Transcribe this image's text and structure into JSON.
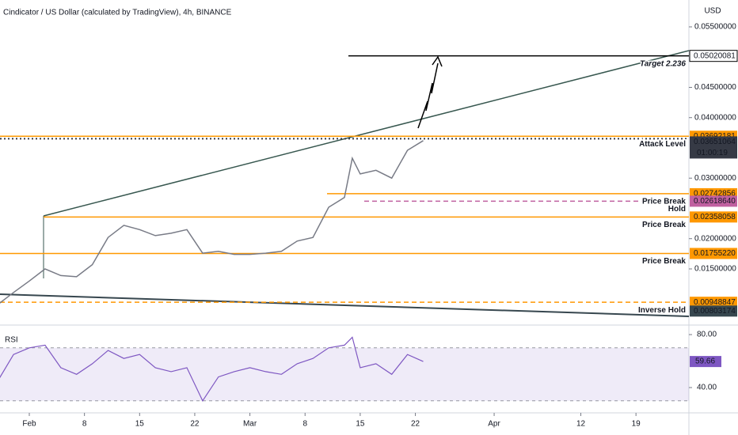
{
  "chart_data": {
    "type": "line",
    "title": "Cindicator / US Dollar (calculated by TradingView), 4h, BINANCE",
    "currency": "USD",
    "x": [
      "01-28",
      "01-30",
      "02-01",
      "02-03",
      "02-05",
      "02-07",
      "02-09",
      "02-11",
      "02-13",
      "02-15",
      "02-17",
      "02-19",
      "02-21",
      "02-23",
      "02-25",
      "02-27",
      "03-01",
      "03-03",
      "03-05",
      "03-07",
      "03-09",
      "03-11",
      "03-13",
      "03-14",
      "03-15",
      "03-17",
      "03-19",
      "03-21",
      "03-23"
    ],
    "series": [
      {
        "color": "#787b86",
        "values": [
          0.0091,
          0.0111,
          0.013,
          0.015,
          0.0139,
          0.0137,
          0.0157,
          0.0202,
          0.0222,
          0.0215,
          0.0205,
          0.0209,
          0.0215,
          0.0176,
          0.0179,
          0.0174,
          0.0174,
          0.0176,
          0.0179,
          0.0196,
          0.0202,
          0.0252,
          0.0268,
          0.0333,
          0.0307,
          0.0313,
          0.03,
          0.0346,
          0.0362
        ]
      }
    ],
    "ylim": [
      0.00585,
      0.05944
    ],
    "yticks": [
      {
        "value": 0.055,
        "label": "0.05500000"
      },
      {
        "value": 0.045,
        "label": "0.04500000"
      },
      {
        "value": 0.04,
        "label": "0.04000000"
      },
      {
        "value": 0.03,
        "label": "0.03000000"
      },
      {
        "value": 0.02,
        "label": "0.02000000"
      },
      {
        "value": 0.015,
        "label": "0.01500000"
      }
    ],
    "xticks": [
      {
        "value": "02-01",
        "label": "Feb"
      },
      {
        "value": "02-08",
        "label": "8"
      },
      {
        "value": "02-15",
        "label": "15"
      },
      {
        "value": "02-22",
        "label": "22"
      },
      {
        "value": "03-01",
        "label": "Mar"
      },
      {
        "value": "03-08",
        "label": "8"
      },
      {
        "value": "03-15",
        "label": "15"
      },
      {
        "value": "03-22",
        "label": "22"
      },
      {
        "value": "04-01",
        "label": "Apr"
      },
      {
        "value": "04-12",
        "label": "12"
      },
      {
        "value": "04-19",
        "label": "19"
      }
    ],
    "levels": [
      {
        "value": 0.05020081,
        "name": "Target 2.236",
        "color": "#000000",
        "style": "solid"
      },
      {
        "value": 0.03692181,
        "name": "Attack Level",
        "color": "#ff9800",
        "style": "solid"
      },
      {
        "value": 0.03651064,
        "color": "#363a45",
        "style": "dotted",
        "timer": "01:00:19"
      },
      {
        "value": 0.02742856,
        "name": "Price Break",
        "color": "#ff9800",
        "style": "solid"
      },
      {
        "value": 0.0261864,
        "label": "0.02618640",
        "name": "Hold",
        "color": "#c060a0",
        "style": "dashed"
      },
      {
        "value": 0.02358058,
        "name": "Price Break",
        "color": "#ff9800",
        "style": "solid"
      },
      {
        "value": 0.0175522,
        "label": "0.01755220",
        "name": "Price Break",
        "color": "#ff9800",
        "style": "solid"
      },
      {
        "value": 0.00948847,
        "name": "Inverse Hold",
        "color": "#ff9800",
        "style": "dashed"
      },
      {
        "value": 0.00803174,
        "color": "#37474f",
        "style": "none"
      }
    ],
    "rsi": {
      "label": "RSI",
      "color": "#7e57c2",
      "values": [
        45,
        65,
        70,
        72,
        55,
        50,
        58,
        68,
        62,
        65,
        55,
        52,
        55,
        30,
        48,
        52,
        55,
        52,
        50,
        58,
        62,
        70,
        72,
        78,
        55,
        58,
        50,
        65,
        59.66
      ],
      "ylim": [
        20.9,
        86
      ],
      "yticks": [
        {
          "value": 80,
          "label": "80.00"
        },
        {
          "value": 40,
          "label": "40.00"
        }
      ],
      "band": [
        30,
        70
      ]
    }
  }
}
